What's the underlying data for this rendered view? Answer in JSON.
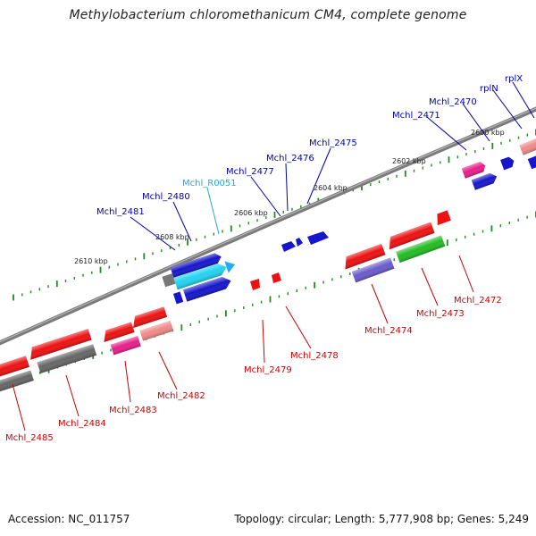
{
  "title": "Methylobacterium chloromethanicum CM4, complete genome",
  "footer": {
    "accession": "Accession: NC_011757",
    "stats": "Topology: circular; Length: 5,777,908 bp; Genes: 5,249"
  },
  "colors": {
    "backbone": "#888888",
    "tick": "#228B22",
    "plus_label": "#0000aa",
    "minus_label": "#cc0000",
    "rna_label": "#22aacc"
  },
  "ruler_ticks": [
    "2610 kbp",
    "2608 kbp",
    "2606 kbp",
    "2604 kbp",
    "2602 kbp",
    "2600 kbp"
  ],
  "upper_labels": [
    "Mchl_2481",
    "Mchl_2480",
    "Mchl_R0051",
    "Mchl_2477",
    "Mchl_2476",
    "Mchl_2475",
    "Mchl_2471",
    "Mchl_2470",
    "rplN",
    "rplX"
  ],
  "lower_labels": [
    "Mchl_2485",
    "Mchl_2484",
    "Mchl_2483",
    "Mchl_2482",
    "Mchl_2479",
    "Mchl_2478",
    "Mchl_2474",
    "Mchl_2473",
    "Mchl_2472"
  ]
}
